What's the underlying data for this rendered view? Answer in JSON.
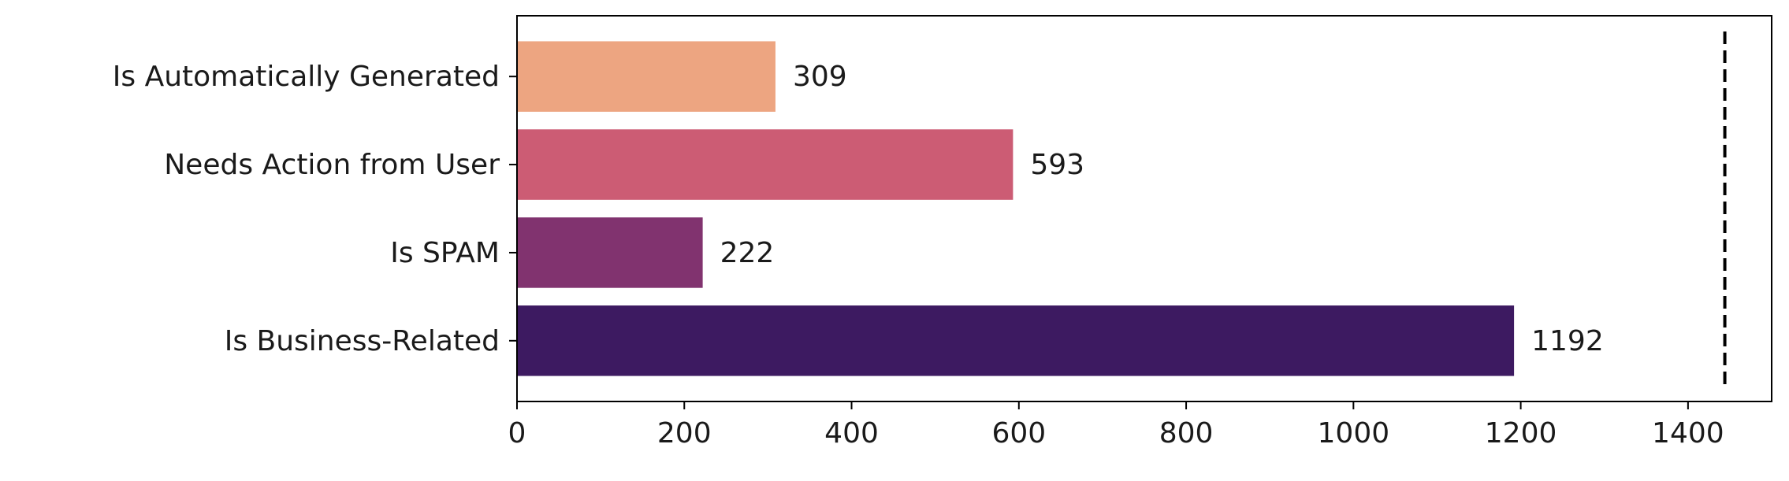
{
  "chart_data": {
    "type": "barh",
    "categories": [
      "Is Automatically Generated",
      "Needs Action from User",
      "Is SPAM",
      "Is Business-Related"
    ],
    "values": [
      309,
      593,
      222,
      1192
    ],
    "colors": [
      "#eda581",
      "#cc5c74",
      "#81336f",
      "#3d1a61"
    ],
    "xlim": [
      0,
      1500
    ],
    "xticks": [
      0,
      200,
      400,
      600,
      800,
      1000,
      1200,
      1400
    ],
    "reference_line": 1444,
    "grid": false
  }
}
